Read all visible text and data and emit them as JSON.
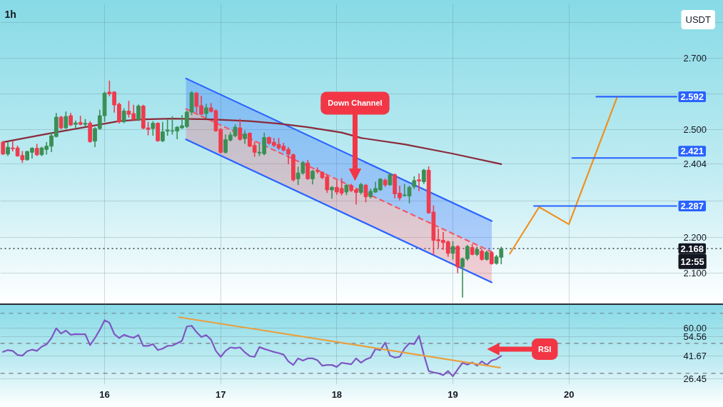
{
  "chart_data": [
    {
      "type": "candlestick",
      "title": "1h",
      "ylabel": "USDT",
      "x": [
        15.125,
        15.1667,
        15.2083,
        15.25,
        15.2917,
        15.3333,
        15.375,
        15.4167,
        15.4583,
        15.5,
        15.5417,
        15.5833,
        15.625,
        15.6667,
        15.7083,
        15.75,
        15.7917,
        15.8333,
        15.875,
        15.9167,
        15.9583,
        16,
        16.0417,
        16.0833,
        16.125,
        16.1667,
        16.2083,
        16.25,
        16.2917,
        16.3333,
        16.375,
        16.4167,
        16.4583,
        16.5,
        16.5417,
        16.5833,
        16.625,
        16.6667,
        16.7083,
        16.75,
        16.7917,
        16.8333,
        16.875,
        16.9167,
        16.9583,
        17,
        17.0417,
        17.0833,
        17.125,
        17.1667,
        17.2083,
        17.25,
        17.2917,
        17.3333,
        17.375,
        17.4167,
        17.4583,
        17.5,
        17.5417,
        17.5833,
        17.625,
        17.6667,
        17.7083,
        17.75,
        17.7917,
        17.8333,
        17.875,
        17.9167,
        17.9583,
        18,
        18.0417,
        18.0833,
        18.125,
        18.1667,
        18.2083,
        18.25,
        18.2917,
        18.3333,
        18.375,
        18.4167,
        18.4583,
        18.5,
        18.5417,
        18.5833,
        18.625,
        18.6667,
        18.7083,
        18.75,
        18.7917,
        18.8333,
        18.875,
        18.9167,
        18.9583,
        19,
        19.0417,
        19.0833,
        19.125,
        19.1667,
        19.2083,
        19.25,
        19.2917,
        19.3333,
        19.375,
        19.4167
      ],
      "ohlc": [
        [
          2.465,
          2.467,
          2.431,
          2.432
        ],
        [
          2.432,
          2.464,
          2.428,
          2.451
        ],
        [
          2.449,
          2.467,
          2.441,
          2.447
        ],
        [
          2.449,
          2.454,
          2.426,
          2.427
        ],
        [
          2.428,
          2.439,
          2.409,
          2.416
        ],
        [
          2.416,
          2.44,
          2.415,
          2.439
        ],
        [
          2.437,
          2.45,
          2.421,
          2.448
        ],
        [
          2.448,
          2.459,
          2.428,
          2.43
        ],
        [
          2.43,
          2.451,
          2.428,
          2.449
        ],
        [
          2.445,
          2.464,
          2.432,
          2.454
        ],
        [
          2.454,
          2.491,
          2.439,
          2.483
        ],
        [
          2.481,
          2.545,
          2.48,
          2.535
        ],
        [
          2.535,
          2.537,
          2.503,
          2.505
        ],
        [
          2.505,
          2.549,
          2.504,
          2.537
        ],
        [
          2.539,
          2.545,
          2.512,
          2.513
        ],
        [
          2.515,
          2.524,
          2.505,
          2.519
        ],
        [
          2.52,
          2.537,
          2.514,
          2.515
        ],
        [
          2.515,
          2.528,
          2.51,
          2.518
        ],
        [
          2.518,
          2.522,
          2.465,
          2.467
        ],
        [
          2.468,
          2.505,
          2.453,
          2.503
        ],
        [
          2.503,
          2.554,
          2.501,
          2.539
        ],
        [
          2.539,
          2.605,
          2.524,
          2.602
        ],
        [
          2.605,
          2.635,
          2.595,
          2.6
        ],
        [
          2.605,
          2.606,
          2.549,
          2.569
        ],
        [
          2.571,
          2.574,
          2.519,
          2.522
        ],
        [
          2.522,
          2.558,
          2.52,
          2.552
        ],
        [
          2.552,
          2.579,
          2.535,
          2.543
        ],
        [
          2.545,
          2.568,
          2.526,
          2.529
        ],
        [
          2.528,
          2.569,
          2.526,
          2.566
        ],
        [
          2.566,
          2.568,
          2.503,
          2.504
        ],
        [
          2.505,
          2.52,
          2.486,
          2.501
        ],
        [
          2.503,
          2.522,
          2.485,
          2.518
        ],
        [
          2.518,
          2.519,
          2.468,
          2.469
        ],
        [
          2.469,
          2.52,
          2.467,
          2.494
        ],
        [
          2.496,
          2.528,
          2.485,
          2.499
        ],
        [
          2.496,
          2.536,
          2.488,
          2.497
        ],
        [
          2.496,
          2.508,
          2.475,
          2.507
        ],
        [
          2.505,
          2.539,
          2.504,
          2.511
        ],
        [
          2.509,
          2.552,
          2.507,
          2.549
        ],
        [
          2.549,
          2.606,
          2.542,
          2.603
        ],
        [
          2.602,
          2.604,
          2.549,
          2.565
        ],
        [
          2.567,
          2.593,
          2.542,
          2.543
        ],
        [
          2.545,
          2.571,
          2.533,
          2.561
        ],
        [
          2.561,
          2.573,
          2.549,
          2.551
        ],
        [
          2.553,
          2.555,
          2.496,
          2.497
        ],
        [
          2.501,
          2.503,
          2.435,
          2.437
        ],
        [
          2.437,
          2.485,
          2.435,
          2.472
        ],
        [
          2.471,
          2.491,
          2.469,
          2.485
        ],
        [
          2.483,
          2.513,
          2.481,
          2.507
        ],
        [
          2.505,
          2.529,
          2.471,
          2.473
        ],
        [
          2.475,
          2.496,
          2.462,
          2.488
        ],
        [
          2.49,
          2.491,
          2.453,
          2.454
        ],
        [
          2.456,
          2.465,
          2.426,
          2.437
        ],
        [
          2.435,
          2.459,
          2.428,
          2.437
        ],
        [
          2.433,
          2.49,
          2.43,
          2.478
        ],
        [
          2.478,
          2.479,
          2.46,
          2.462
        ],
        [
          2.465,
          2.475,
          2.453,
          2.456
        ],
        [
          2.459,
          2.475,
          2.445,
          2.449
        ],
        [
          2.454,
          2.462,
          2.441,
          2.443
        ],
        [
          2.445,
          2.45,
          2.405,
          2.432
        ],
        [
          2.43,
          2.432,
          2.357,
          2.36
        ],
        [
          2.363,
          2.395,
          2.347,
          2.379
        ],
        [
          2.379,
          2.411,
          2.376,
          2.408
        ],
        [
          2.407,
          2.414,
          2.362,
          2.363
        ],
        [
          2.363,
          2.386,
          2.349,
          2.384
        ],
        [
          2.387,
          2.393,
          2.379,
          2.384
        ],
        [
          2.381,
          2.382,
          2.364,
          2.366
        ],
        [
          2.368,
          2.373,
          2.325,
          2.332
        ],
        [
          2.332,
          2.341,
          2.309,
          2.339
        ],
        [
          2.339,
          2.357,
          2.32,
          2.326
        ],
        [
          2.336,
          2.363,
          2.318,
          2.323
        ],
        [
          2.326,
          2.347,
          2.319,
          2.345
        ],
        [
          2.344,
          2.347,
          2.328,
          2.33
        ],
        [
          2.332,
          2.336,
          2.293,
          2.325
        ],
        [
          2.325,
          2.35,
          2.321,
          2.347
        ],
        [
          2.345,
          2.347,
          2.299,
          2.313
        ],
        [
          2.313,
          2.334,
          2.31,
          2.328
        ],
        [
          2.326,
          2.353,
          2.325,
          2.336
        ],
        [
          2.332,
          2.363,
          2.331,
          2.362
        ],
        [
          2.359,
          2.362,
          2.342,
          2.346
        ],
        [
          2.346,
          2.377,
          2.345,
          2.374
        ],
        [
          2.374,
          2.376,
          2.31,
          2.321
        ],
        [
          2.323,
          2.342,
          2.304,
          2.31
        ],
        [
          2.316,
          2.347,
          2.315,
          2.318
        ],
        [
          2.315,
          2.342,
          2.296,
          2.339
        ],
        [
          2.341,
          2.368,
          2.336,
          2.358
        ],
        [
          2.36,
          2.376,
          2.33,
          2.357
        ],
        [
          2.355,
          2.389,
          2.35,
          2.387
        ],
        [
          2.387,
          2.396,
          2.267,
          2.268
        ],
        [
          2.27,
          2.287,
          2.152,
          2.191
        ],
        [
          2.193,
          2.222,
          2.172,
          2.19
        ],
        [
          2.191,
          2.213,
          2.166,
          2.185
        ],
        [
          2.187,
          2.189,
          2.147,
          2.155
        ],
        [
          2.155,
          2.187,
          2.139,
          2.174
        ],
        [
          2.174,
          2.176,
          2.101,
          2.117
        ],
        [
          2.117,
          2.142,
          2.033,
          2.14
        ],
        [
          2.14,
          2.177,
          2.136,
          2.174
        ],
        [
          2.171,
          2.179,
          2.151,
          2.152
        ],
        [
          2.152,
          2.172,
          2.149,
          2.166
        ],
        [
          2.161,
          2.165,
          2.136,
          2.138
        ],
        [
          2.138,
          2.161,
          2.136,
          2.158
        ],
        [
          2.157,
          2.158,
          2.125,
          2.126
        ],
        [
          2.127,
          2.149,
          2.125,
          2.145
        ],
        [
          2.144,
          2.172,
          2.126,
          2.168
        ]
      ],
      "colors": [
        "#ef3b4d",
        "#3b8f55",
        "#ef3b4d",
        "#ef3b4d",
        "#ef3b4d",
        "#3b8f55",
        "#3b8f55",
        "#ef3b4d",
        "#3b8f55",
        "#3b8f55",
        "#3b8f55",
        "#3b8f55",
        "#ef3b4d",
        "#3b8f55",
        "#ef3b4d",
        "#3b8f55",
        "#ef3b4d",
        "#3b8f55",
        "#ef3b4d",
        "#3b8f55",
        "#3b8f55",
        "#3b8f55",
        "#ef3b4d",
        "#ef3b4d",
        "#ef3b4d",
        "#3b8f55",
        "#ef3b4d",
        "#ef3b4d",
        "#3b8f55",
        "#ef3b4d",
        "#ef3b4d",
        "#3b8f55",
        "#ef3b4d",
        "#3b8f55",
        "#3b8f55",
        "#3b8f55",
        "#3b8f55",
        "#3b8f55",
        "#3b8f55",
        "#3b8f55",
        "#ef3b4d",
        "#ef3b4d",
        "#3b8f55",
        "#ef3b4d",
        "#ef3b4d",
        "#ef3b4d",
        "#3b8f55",
        "#3b8f55",
        "#3b8f55",
        "#ef3b4d",
        "#3b8f55",
        "#ef3b4d",
        "#ef3b4d",
        "#3b8f55",
        "#3b8f55",
        "#ef3b4d",
        "#ef3b4d",
        "#ef3b4d",
        "#ef3b4d",
        "#ef3b4d",
        "#ef3b4d",
        "#3b8f55",
        "#3b8f55",
        "#ef3b4d",
        "#3b8f55",
        "#ef3b4d",
        "#ef3b4d",
        "#ef3b4d",
        "#3b8f55",
        "#ef3b4d",
        "#ef3b4d",
        "#3b8f55",
        "#ef3b4d",
        "#ef3b4d",
        "#3b8f55",
        "#ef3b4d",
        "#3b8f55",
        "#3b8f55",
        "#3b8f55",
        "#ef3b4d",
        "#3b8f55",
        "#ef3b4d",
        "#ef3b4d",
        "#3b8f55",
        "#3b8f55",
        "#3b8f55",
        "#ef3b4d",
        "#3b8f55",
        "#ef3b4d",
        "#ef3b4d",
        "#ef3b4d",
        "#ef3b4d",
        "#ef3b4d",
        "#3b8f55",
        "#ef3b4d",
        "#3b8f55",
        "#3b8f55",
        "#ef3b4d",
        "#3b8f55",
        "#ef3b4d",
        "#3b8f55",
        "#ef3b4d",
        "#3b8f55",
        "#3b8f55"
      ],
      "series": [
        {
          "type": "line",
          "color": "#2962ff",
          "x": [
            16.701,
            19.335
          ],
          "values": [
            2.643,
            2.245
          ],
          "lower": [
            2.558,
            2.159
          ],
          "upper": [
            2.643,
            2.245
          ]
        },
        {
          "type": "line",
          "color": "#f05a6a",
          "line_style": "dashed",
          "x": [
            16.701,
            19.335
          ],
          "values": [
            2.558,
            2.159
          ],
          "lower": [
            2.473,
            2.074
          ],
          "upper": [
            2.558,
            2.159
          ]
        },
        {
          "type": "line",
          "color": "#2962ff",
          "x": [
            16.701,
            19.335
          ],
          "values": [
            2.473,
            2.074
          ]
        },
        {
          "type": "line",
          "color": "#8b2b3b",
          "x": [
            15.125,
            15.5,
            15.9167,
            16.125,
            16.3333,
            16.5833,
            16.9167,
            17.25,
            17.5,
            17.75,
            18.0417,
            18.2083,
            18.5833,
            19,
            19.4167
          ],
          "values": [
            2.465,
            2.488,
            2.512,
            2.524,
            2.529,
            2.531,
            2.529,
            2.524,
            2.517,
            2.507,
            2.492,
            2.477,
            2.459,
            2.433,
            2.404
          ]
        },
        {
          "type": "line",
          "color": "#f0901e",
          "x": [
            19.491,
            19.743,
            19.999,
            20.414
          ],
          "values": [
            2.154,
            2.284,
            2.236,
            2.59
          ]
        },
        {
          "type": "line",
          "color": "#2962ff",
          "x": [
            19.699,
            20.926
          ],
          "values": [
            2.287,
            2.287
          ],
          "value_labels": [
            null,
            "2.287"
          ]
        },
        {
          "type": "line",
          "color": "#2962ff",
          "x": [
            20.027,
            20.926
          ],
          "values": [
            2.421,
            2.421
          ],
          "value_labels": [
            null,
            "2.421"
          ]
        },
        {
          "type": "line",
          "color": "#2962ff",
          "x": [
            20.236,
            20.926
          ],
          "values": [
            2.592,
            2.592
          ],
          "value_labels": [
            null,
            "2.592"
          ]
        }
      ],
      "ref_lines": [
        {
          "axis": "y",
          "value": 2.168,
          "label": "2.168",
          "color": "#131722",
          "line_style": "dotted"
        }
      ],
      "annotations": [
        "Down Channel",
        "12:55"
      ],
      "xlim": [
        15.102,
        21.33
      ],
      "xticks": [
        16,
        17,
        18,
        19,
        20
      ],
      "ylim": [
        2.014,
        2.851
      ],
      "yticks": [
        {
          "value": 2.1,
          "label": "2.100"
        },
        {
          "value": 2.2,
          "label": "2.200"
        },
        {
          "value": 2.3,
          "label": null
        },
        {
          "value": 2.404,
          "label": "2.404"
        },
        {
          "value": 2.5,
          "label": "2.500"
        },
        {
          "value": 2.6,
          "label": null
        },
        {
          "value": 2.7,
          "label": "2.700"
        },
        {
          "value": 2.8,
          "label": null
        }
      ],
      "tick_labels": "y",
      "grid": true
    },
    {
      "type": "line",
      "x": [
        15.125,
        15.1667,
        15.2083,
        15.25,
        15.2917,
        15.3333,
        15.375,
        15.4167,
        15.4583,
        15.5,
        15.5417,
        15.5833,
        15.625,
        15.6667,
        15.7083,
        15.75,
        15.7917,
        15.8333,
        15.875,
        15.9167,
        15.9583,
        16,
        16.0417,
        16.0833,
        16.125,
        16.1667,
        16.2083,
        16.25,
        16.2917,
        16.3333,
        16.375,
        16.4167,
        16.4583,
        16.5,
        16.5417,
        16.5833,
        16.625,
        16.6667,
        16.7083,
        16.75,
        16.7917,
        16.8333,
        16.875,
        16.9167,
        16.9583,
        17,
        17.0417,
        17.0833,
        17.125,
        17.1667,
        17.2083,
        17.25,
        17.2917,
        17.3333,
        17.375,
        17.4167,
        17.4583,
        17.5,
        17.5417,
        17.5833,
        17.625,
        17.6667,
        17.7083,
        17.75,
        17.7917,
        17.8333,
        17.875,
        17.9167,
        17.9583,
        18,
        18.0417,
        18.0833,
        18.125,
        18.1667,
        18.2083,
        18.25,
        18.2917,
        18.3333,
        18.375,
        18.4167,
        18.4583,
        18.5,
        18.5417,
        18.5833,
        18.625,
        18.6667,
        18.7083,
        18.75,
        18.7917,
        18.8333,
        18.875,
        18.9167,
        18.9583,
        19,
        19.0417,
        19.0833,
        19.125,
        19.1667,
        19.2083,
        19.25,
        19.2917,
        19.3333,
        19.375,
        19.4167
      ],
      "series": [
        {
          "color": "#7e57c2",
          "values": [
            44.3,
            45.5,
            45.0,
            42.3,
            41.8,
            44.8,
            45.8,
            45.0,
            47.8,
            49.3,
            53.5,
            60.0,
            56.5,
            58.5,
            55.7,
            56.2,
            56.0,
            56.0,
            48.8,
            53.5,
            59.0,
            65.4,
            63.7,
            56.2,
            53.5,
            55.7,
            54.5,
            53.7,
            55.5,
            48.3,
            48.3,
            49.5,
            45.5,
            46.5,
            48.3,
            48.5,
            50.0,
            51.7,
            61.2,
            61.7,
            57.5,
            54.2,
            55.5,
            52.5,
            45.0,
            41.0,
            45.0,
            47.3,
            46.8,
            47.3,
            44.0,
            41.5,
            41.0,
            47.5,
            46.3,
            45.3,
            44.3,
            43.5,
            42.5,
            38.0,
            35.6,
            40.0,
            38.5,
            40.0,
            40.0,
            38.8,
            35.1,
            35.6,
            35.6,
            34.3,
            37.1,
            36.6,
            36.1,
            40.0,
            37.1,
            39.3,
            40.5,
            46.3,
            45.5,
            50.5,
            41.8,
            40.5,
            41.0,
            46.5,
            50.0,
            49.5,
            55.0,
            42.5,
            31.6,
            30.6,
            30.1,
            28.8,
            31.6,
            28.1,
            32.6,
            37.1,
            35.8,
            37.3,
            35.1,
            38.0,
            35.6,
            38.5,
            39.5,
            41.67
          ]
        },
        {
          "type": "line",
          "color": "#e8a040",
          "x": [
            16.64,
            19.407
          ],
          "values": [
            67.4,
            33.8
          ]
        }
      ],
      "ref_lines": [
        {
          "axis": "y",
          "value": 70,
          "color": "#787b86",
          "line_style": "dashed"
        },
        {
          "axis": "y",
          "value": 50,
          "color": "#787b86",
          "line_style": "dashed"
        },
        {
          "axis": "y",
          "value": 30,
          "color": "#787b86",
          "line_style": "dashed"
        }
      ],
      "annotations": [
        "RSI"
      ],
      "xlim": [
        15.102,
        21.33
      ],
      "xticks": [
        16,
        17,
        18,
        19,
        20
      ],
      "ylim": [
        22.6,
        76.3
      ],
      "yticks": [
        {
          "value": 26.45,
          "label": "26.45"
        },
        {
          "value": 41.67,
          "label": "41.67"
        },
        {
          "value": 54.56,
          "label": "54.56"
        },
        {
          "value": 60,
          "label": "60.00"
        }
      ],
      "grid": true
    }
  ]
}
